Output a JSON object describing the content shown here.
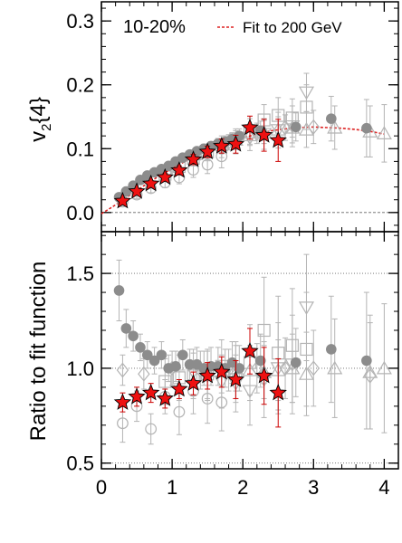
{
  "colors": {
    "axis": "#000000",
    "fit": "#dd2222",
    "star_fill": "#ee1111",
    "star_edge": "#000000",
    "solid_marker": "#8c8c8c",
    "open_marker": "#b4b4b4",
    "error_bar": "#b4b4b4",
    "star_error": "#cc0000",
    "dotted_ref": "#666666"
  },
  "chart_data": [
    {
      "type": "scatter",
      "panel": "top",
      "ylabel": "v2{4}",
      "ylabel_main": "v",
      "ylabel_sub": "2",
      "ylabel_rest": "{4}",
      "xlim": [
        0,
        4.2
      ],
      "ylim": [
        -0.03,
        0.33
      ],
      "y_ticks": [
        0.0,
        0.1,
        0.2,
        0.3
      ],
      "y_tick_labels": [
        "0.0",
        "0.1",
        "0.2",
        "0.3"
      ],
      "centrality_label": "10-20%",
      "fit_label": "Fit to 200 GeV",
      "legend_position": "top-right",
      "reference_lines": [
        0.0
      ],
      "fit_curve": {
        "x": [
          0.0,
          0.2,
          0.4,
          0.6,
          0.8,
          1.0,
          1.2,
          1.4,
          1.6,
          1.8,
          2.0,
          2.2,
          2.4,
          2.6,
          2.8,
          3.0,
          3.2,
          3.4,
          3.6,
          3.8,
          4.0
        ],
        "y": [
          -0.002,
          0.012,
          0.027,
          0.042,
          0.056,
          0.069,
          0.081,
          0.092,
          0.102,
          0.11,
          0.117,
          0.123,
          0.128,
          0.131,
          0.133,
          0.134,
          0.133,
          0.132,
          0.13,
          0.127,
          0.123
        ]
      },
      "series": [
        {
          "marker": "star",
          "x": [
            0.3,
            0.5,
            0.7,
            0.9,
            1.1,
            1.3,
            1.5,
            1.7,
            1.9,
            2.1,
            2.3,
            2.5
          ],
          "y": [
            0.018,
            0.033,
            0.045,
            0.055,
            0.066,
            0.083,
            0.095,
            0.104,
            0.107,
            0.133,
            0.121,
            0.113
          ],
          "yerr": [
            0.004,
            0.004,
            0.005,
            0.006,
            0.007,
            0.008,
            0.009,
            0.011,
            0.014,
            0.018,
            0.025,
            0.033
          ]
        },
        {
          "marker": "solid-circle",
          "x": [
            0.25,
            0.35,
            0.45,
            0.55,
            0.65,
            0.75,
            0.85,
            0.95,
            1.05,
            1.15,
            1.25,
            1.35,
            1.45,
            1.55,
            1.65,
            1.75,
            1.85,
            1.95,
            2.25,
            2.75,
            3.25,
            3.75
          ],
          "y": [
            0.024,
            0.033,
            0.042,
            0.051,
            0.058,
            0.063,
            0.068,
            0.073,
            0.08,
            0.086,
            0.091,
            0.096,
            0.1,
            0.104,
            0.108,
            0.111,
            0.115,
            0.12,
            0.128,
            0.134,
            0.147,
            0.132
          ],
          "yerr": [
            0.003,
            0.003,
            0.003,
            0.003,
            0.004,
            0.004,
            0.004,
            0.005,
            0.005,
            0.005,
            0.006,
            0.006,
            0.007,
            0.007,
            0.008,
            0.009,
            0.01,
            0.011,
            0.015,
            0.022,
            0.035,
            0.045
          ]
        },
        {
          "marker": "open-circle",
          "x": [
            0.3,
            0.5,
            0.7,
            0.9,
            1.1,
            1.3,
            1.5,
            1.7
          ],
          "y": [
            0.017,
            0.028,
            0.038,
            0.047,
            0.055,
            0.067,
            0.075,
            0.088
          ],
          "yerr": [
            0.006,
            0.006,
            0.007,
            0.008,
            0.01,
            0.012,
            0.014,
            0.018
          ]
        },
        {
          "marker": "open-square",
          "x": [
            0.9,
            1.1,
            1.3,
            1.5,
            1.7,
            1.9,
            2.1,
            2.3,
            2.5,
            2.7,
            2.9
          ],
          "y": [
            0.06,
            0.072,
            0.085,
            0.095,
            0.106,
            0.115,
            0.127,
            0.145,
            0.152,
            0.148,
            0.165
          ],
          "yerr": [
            0.01,
            0.01,
            0.012,
            0.012,
            0.014,
            0.016,
            0.02,
            0.024,
            0.028,
            0.03,
            0.035
          ]
        },
        {
          "marker": "open-triangle-down",
          "x": [
            1.3,
            1.5,
            1.7,
            1.9,
            2.1,
            2.3,
            2.5,
            2.7,
            2.9
          ],
          "y": [
            0.085,
            0.093,
            0.1,
            0.108,
            0.117,
            0.123,
            0.129,
            0.135,
            0.188
          ],
          "yerr": [
            0.01,
            0.012,
            0.014,
            0.016,
            0.02,
            0.024,
            0.028,
            0.032,
            0.03
          ]
        },
        {
          "marker": "open-triangle-up",
          "x": [
            1.9,
            2.1,
            2.3,
            2.5,
            2.7,
            2.9,
            3.3,
            3.8,
            4.0
          ],
          "y": [
            0.114,
            0.121,
            0.126,
            0.13,
            0.133,
            0.13,
            0.133,
            0.127,
            0.124
          ],
          "yerr": [
            0.014,
            0.016,
            0.018,
            0.02,
            0.024,
            0.028,
            0.034,
            0.04,
            0.045
          ]
        },
        {
          "marker": "open-diamond",
          "x": [
            1.0,
            1.4,
            1.8,
            2.2,
            2.6,
            3.0
          ],
          "y": [
            0.072,
            0.093,
            0.11,
            0.124,
            0.133,
            0.134
          ],
          "yerr": [
            0.008,
            0.01,
            0.012,
            0.016,
            0.02,
            0.026
          ]
        }
      ]
    },
    {
      "type": "scatter",
      "panel": "bottom",
      "ylabel": "Ratio to fit function",
      "xlim": [
        0,
        4.2
      ],
      "ylim": [
        0.47,
        1.72
      ],
      "x_ticks": [
        0,
        1,
        2,
        3,
        4
      ],
      "x_tick_labels": [
        "0",
        "1",
        "2",
        "3",
        "4"
      ],
      "y_ticks": [
        0.5,
        1.0,
        1.5
      ],
      "y_tick_labels": [
        "0.5",
        "1.0",
        "1.5"
      ],
      "reference_lines": [
        0.5,
        1.0,
        1.5
      ],
      "series": [
        {
          "marker": "star",
          "x": [
            0.3,
            0.5,
            0.7,
            0.9,
            1.1,
            1.3,
            1.5,
            1.7,
            1.9,
            2.1,
            2.3,
            2.5
          ],
          "y": [
            0.82,
            0.85,
            0.87,
            0.84,
            0.89,
            0.92,
            0.96,
            0.98,
            0.94,
            1.09,
            0.96,
            0.87
          ],
          "yerr": [
            0.05,
            0.05,
            0.05,
            0.05,
            0.05,
            0.06,
            0.07,
            0.08,
            0.1,
            0.12,
            0.15,
            0.18
          ]
        },
        {
          "marker": "solid-circle",
          "x": [
            0.25,
            0.35,
            0.45,
            0.55,
            0.65,
            0.75,
            0.85,
            0.95,
            1.05,
            1.15,
            1.25,
            1.35,
            1.45,
            1.55,
            1.65,
            1.75,
            1.85,
            1.95,
            2.25,
            2.75,
            3.25,
            3.75
          ],
          "y": [
            1.41,
            1.21,
            1.17,
            1.11,
            1.07,
            1.04,
            1.07,
            1.0,
            1.01,
            1.07,
            1.02,
            1.02,
            1.0,
            1.01,
            1.01,
            1.0,
            1.03,
            1.0,
            1.04,
            1.03,
            1.1,
            1.04
          ],
          "yerr": [
            0.16,
            0.1,
            0.08,
            0.07,
            0.07,
            0.07,
            0.07,
            0.07,
            0.08,
            0.08,
            0.08,
            0.09,
            0.09,
            0.1,
            0.1,
            0.1,
            0.11,
            0.12,
            0.14,
            0.18,
            0.28,
            0.36
          ]
        },
        {
          "marker": "open-circle",
          "x": [
            0.3,
            0.5,
            0.7,
            0.9,
            1.1,
            1.3,
            1.5,
            1.7
          ],
          "y": [
            0.71,
            0.8,
            0.68,
            0.85,
            0.77,
            0.88,
            0.84,
            0.82
          ],
          "yerr": [
            0.1,
            0.08,
            0.08,
            0.09,
            0.12,
            0.12,
            0.13,
            0.15
          ]
        },
        {
          "marker": "open-square",
          "x": [
            0.9,
            1.1,
            1.3,
            1.5,
            1.7,
            1.9,
            2.1,
            2.3,
            2.5,
            2.7,
            2.9
          ],
          "y": [
            0.93,
            0.95,
            0.96,
            0.97,
            1.01,
            0.98,
            1.03,
            1.2,
            1.08,
            1.12,
            1.1
          ],
          "yerr": [
            0.12,
            0.12,
            0.12,
            0.13,
            0.14,
            0.16,
            0.2,
            0.28,
            0.3,
            0.3,
            0.3
          ]
        },
        {
          "marker": "open-triangle-down",
          "x": [
            1.3,
            1.5,
            1.7,
            1.9,
            2.1,
            2.3,
            2.5,
            2.7,
            2.9
          ],
          "y": [
            0.98,
            0.96,
            0.93,
            0.92,
            0.88,
            0.94,
            1.0,
            1.02,
            1.32
          ],
          "yerr": [
            0.12,
            0.13,
            0.14,
            0.15,
            0.18,
            0.2,
            0.24,
            0.26,
            0.28
          ]
        },
        {
          "marker": "open-triangle-up",
          "x": [
            1.9,
            2.1,
            2.3,
            2.5,
            2.7,
            2.9,
            3.3,
            3.8,
            4.0
          ],
          "y": [
            1.0,
            0.99,
            0.98,
            0.99,
            1.0,
            0.97,
            1.0,
            0.98,
            1.0
          ],
          "yerr": [
            0.12,
            0.13,
            0.14,
            0.16,
            0.18,
            0.22,
            0.26,
            0.3,
            0.34
          ]
        },
        {
          "marker": "open-diamond",
          "x": [
            0.3,
            0.6,
            1.0,
            1.4,
            1.8,
            2.2,
            2.6,
            3.0,
            3.8
          ],
          "y": [
            0.99,
            0.97,
            1.0,
            0.99,
            0.99,
            1.0,
            1.0,
            1.0,
            0.96
          ],
          "yerr": [
            0.08,
            0.08,
            0.09,
            0.1,
            0.11,
            0.13,
            0.16,
            0.2,
            0.28
          ]
        }
      ]
    }
  ]
}
